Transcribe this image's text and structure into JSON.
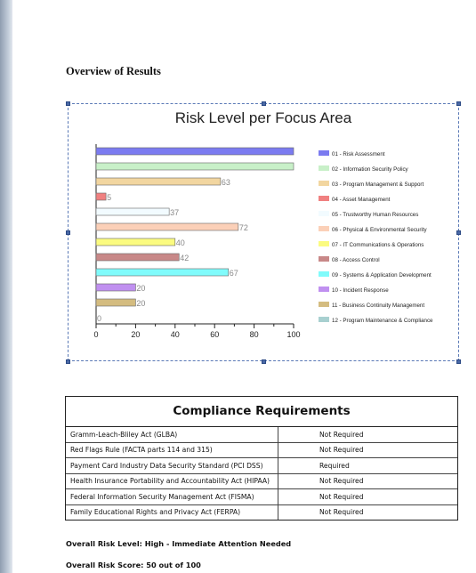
{
  "document": {
    "heading": "Overview of Results"
  },
  "chart_data": {
    "type": "bar",
    "orientation": "horizontal",
    "title": "Risk Level per Focus Area",
    "categories": [
      "01 - Risk Assessment",
      "02 - Information Security Policy",
      "03 - Program Management & Support",
      "04 - Asset Management",
      "05 - Trustworthy Human Resources",
      "06 - Physical & Environmental Security",
      "07 - IT Communications & Operations",
      "08 - Access Control",
      "09 - Systems & Application Development",
      "10 - Incident Response",
      "11 - Business Continuity Management",
      "12 - Program Maintenance & Compliance"
    ],
    "values": [
      100,
      100,
      63,
      5,
      37,
      72,
      40,
      42,
      67,
      20,
      20,
      0
    ],
    "value_labels": [
      "",
      "",
      "63",
      "5",
      "37",
      "72",
      "40",
      "42",
      "67",
      "20",
      "20",
      "0"
    ],
    "colors": [
      "#7b7bf0",
      "#c8f0c8",
      "#f2d6a0",
      "#f08080",
      "#f2fbff",
      "#fbd0b8",
      "#fbfb80",
      "#c88888",
      "#80fbfb",
      "#c090f0",
      "#d4bc80",
      "#a8d0d0"
    ],
    "xlim": [
      0,
      100
    ],
    "xticks": [
      "0",
      "20",
      "40",
      "60",
      "80",
      "100"
    ],
    "legend_position": "right",
    "grid": false
  },
  "compliance": {
    "title": "Compliance Requirements",
    "rows": [
      {
        "name": "Gramm-Leach-Bliley Act (GLBA)",
        "status": "Not Required"
      },
      {
        "name": "Red Flags Rule (FACTA parts 114 and 315)",
        "status": "Not Required"
      },
      {
        "name": "Payment Card Industry Data Security Standard (PCI DSS)",
        "status": "Required"
      },
      {
        "name": "Health Insurance Portability and Accountability Act (HIPAA)",
        "status": "Not Required"
      },
      {
        "name": "Federal Information Security Management Act (FISMA)",
        "status": "Not Required"
      },
      {
        "name": "Family Educational Rights and Privacy Act (FERPA)",
        "status": "Not Required"
      }
    ]
  },
  "summary": {
    "risk_level": "Overall Risk Level:  High - Immediate Attention Needed",
    "risk_score": "Overall Risk Score: 50 out of 100"
  }
}
